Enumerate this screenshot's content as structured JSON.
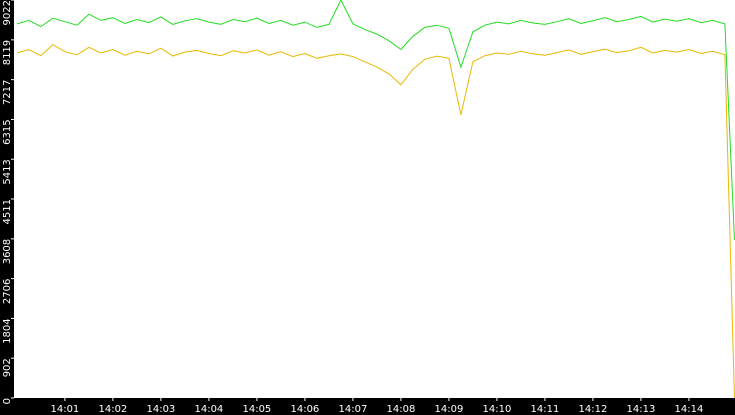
{
  "chart_data": {
    "type": "line",
    "x": [
      840,
      840.25,
      840.5,
      840.75,
      841,
      841.25,
      841.5,
      841.75,
      842,
      842.25,
      842.5,
      842.75,
      843,
      843.25,
      843.5,
      843.75,
      844,
      844.25,
      844.5,
      844.75,
      845,
      845.25,
      845.5,
      845.75,
      846,
      846.25,
      846.5,
      846.75,
      847,
      847.25,
      847.5,
      847.75,
      848,
      848.25,
      848.5,
      848.75,
      849,
      849.25,
      849.5,
      849.75,
      850,
      850.25,
      850.5,
      850.75,
      851,
      851.25,
      851.5,
      851.75,
      852,
      852.25,
      852.5,
      852.75,
      853,
      853.25,
      853.5,
      853.75,
      854,
      854.25,
      854.5,
      854.75,
      854.95
    ],
    "series": [
      {
        "color": "#22dd22",
        "values": [
          8480,
          8560,
          8420,
          8610,
          8530,
          8450,
          8700,
          8560,
          8620,
          8490,
          8580,
          8510,
          8640,
          8470,
          8550,
          8600,
          8520,
          8470,
          8580,
          8530,
          8610,
          8490,
          8560,
          8450,
          8520,
          8400,
          8470,
          9022,
          8480,
          8350,
          8250,
          8100,
          7900,
          8200,
          8400,
          8450,
          8380,
          7500,
          8300,
          8450,
          8520,
          8480,
          8560,
          8500,
          8470,
          8530,
          8600,
          8490,
          8550,
          8620,
          8530,
          8580,
          8650,
          8520,
          8590,
          8540,
          8600,
          8510,
          8560,
          8480,
          3580
        ]
      },
      {
        "color": "#e8b800",
        "values": [
          7820,
          7900,
          7760,
          8010,
          7850,
          7780,
          7950,
          7820,
          7900,
          7770,
          7860,
          7800,
          7930,
          7750,
          7840,
          7880,
          7810,
          7760,
          7870,
          7820,
          7890,
          7770,
          7850,
          7740,
          7810,
          7700,
          7760,
          7800,
          7740,
          7620,
          7500,
          7350,
          7100,
          7450,
          7680,
          7750,
          7700,
          6420,
          7620,
          7760,
          7820,
          7790,
          7860,
          7800,
          7770,
          7830,
          7890,
          7790,
          7850,
          7910,
          7830,
          7870,
          7950,
          7820,
          7880,
          7840,
          7900,
          7810,
          7860,
          7780,
          0
        ]
      }
    ],
    "xlim": [
      839.94,
      854.96
    ],
    "xticks": [
      {
        "value": 841,
        "label": "14:01"
      },
      {
        "value": 842,
        "label": "14:02"
      },
      {
        "value": 843,
        "label": "14:03"
      },
      {
        "value": 844,
        "label": "14:04"
      },
      {
        "value": 845,
        "label": "14:05"
      },
      {
        "value": 846,
        "label": "14:06"
      },
      {
        "value": 847,
        "label": "14:07"
      },
      {
        "value": 848,
        "label": "14:08"
      },
      {
        "value": 849,
        "label": "14:09"
      },
      {
        "value": 850,
        "label": "14:10"
      },
      {
        "value": 851,
        "label": "14:11"
      },
      {
        "value": 852,
        "label": "14:12"
      },
      {
        "value": 853,
        "label": "14:13"
      },
      {
        "value": 854,
        "label": "14:14"
      }
    ],
    "ylim": [
      0,
      9022
    ],
    "yticks": [
      0,
      902,
      1804,
      2706,
      3608,
      4511,
      5413,
      6315,
      7217,
      8119,
      9022
    ]
  }
}
